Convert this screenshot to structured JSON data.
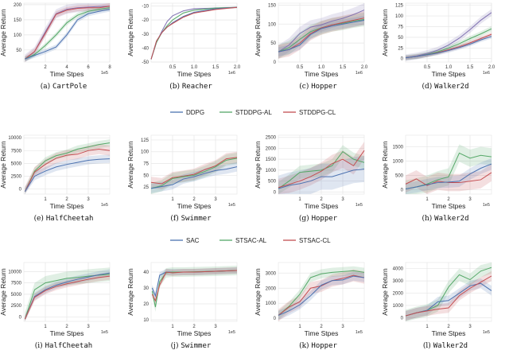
{
  "colors": {
    "blue": "#4c72b0",
    "green": "#55a868",
    "red": "#c44e52",
    "purple": "#8172b2"
  },
  "legends": [
    {
      "entries": [
        {
          "name": "DDPG",
          "color": "#4c72b0"
        },
        {
          "name": "STDDPG-AL",
          "color": "#55a868"
        },
        {
          "name": "STDDPG-CL",
          "color": "#c44e52"
        }
      ]
    },
    {
      "entries": [
        {
          "name": "SAC",
          "color": "#4c72b0"
        },
        {
          "name": "STSAC-AL",
          "color": "#55a868"
        },
        {
          "name": "STSAC-CL",
          "color": "#c44e52"
        }
      ]
    }
  ],
  "chart_data": [
    {
      "type": "line",
      "label": "(a)",
      "env": "CartPole",
      "xlabel": "Time Stpes",
      "ylabel": "Average Return",
      "x_multiplier": "1e5",
      "xlim": [
        0,
        8
      ],
      "ylim": [
        10,
        205
      ],
      "xticks": [
        2,
        4,
        6,
        8
      ],
      "yticks": [
        50,
        100,
        150,
        200
      ],
      "grid": true,
      "x": [
        0.1,
        1,
        2,
        3,
        4,
        5,
        6,
        7,
        8
      ],
      "series": [
        {
          "color": "#8172b2",
          "spread": 15,
          "values": [
            20,
            45,
            110,
            170,
            185,
            190,
            192,
            194,
            195
          ]
        },
        {
          "color": "#c44e52",
          "spread": 10,
          "values": [
            20,
            45,
            105,
            168,
            182,
            188,
            190,
            190,
            195
          ]
        },
        {
          "color": "#55a868",
          "spread": 8,
          "values": [
            20,
            35,
            65,
            100,
            140,
            165,
            178,
            185,
            190
          ]
        },
        {
          "color": "#4c72b0",
          "spread": 8,
          "values": [
            20,
            32,
            45,
            60,
            100,
            150,
            170,
            178,
            185
          ]
        }
      ]
    },
    {
      "type": "line",
      "label": "(b)",
      "env": "Reacher",
      "xlabel": "Time Stpes",
      "ylabel": "Average Return",
      "x_multiplier": "1e6",
      "xlim": [
        0,
        2
      ],
      "ylim": [
        -50,
        -8
      ],
      "xticks": [
        0.5,
        1.0,
        1.5,
        2.0
      ],
      "yticks": [
        -50,
        -40,
        -30,
        -20,
        -10
      ],
      "grid": true,
      "x": [
        0,
        0.125,
        0.25,
        0.375,
        0.5,
        0.75,
        1,
        1.5,
        2
      ],
      "series": [
        {
          "color": "#8172b2",
          "spread": 0.5,
          "values": [
            -48,
            -36,
            -28,
            -21,
            -17,
            -13.5,
            -12,
            -11.5,
            -11
          ]
        },
        {
          "color": "#55a868",
          "spread": 0.5,
          "values": [
            -48,
            -36,
            -29,
            -24,
            -20,
            -15,
            -13,
            -11.5,
            -11
          ]
        },
        {
          "color": "#4c72b0",
          "spread": 0.5,
          "values": [
            -48,
            -35,
            -29,
            -25,
            -22,
            -17.5,
            -14.5,
            -12,
            -11
          ]
        },
        {
          "color": "#c44e52",
          "spread": 0.5,
          "values": [
            -48,
            -35,
            -29,
            -25,
            -22.5,
            -18,
            -15,
            -12.5,
            -11
          ]
        }
      ]
    },
    {
      "type": "line",
      "label": "(c)",
      "env": "Hopper",
      "xlabel": "Time Stpes",
      "ylabel": "Average Return",
      "x_multiplier": "1e6",
      "xlim": [
        0,
        2
      ],
      "ylim": [
        0,
        155
      ],
      "xticks": [
        0.5,
        1.0,
        1.5,
        2.0
      ],
      "yticks": [
        0,
        50,
        100,
        150
      ],
      "grid": true,
      "x": [
        0,
        0.25,
        0.5,
        0.75,
        1,
        1.25,
        1.5,
        1.75,
        2
      ],
      "series": [
        {
          "color": "#8172b2",
          "spread": 18,
          "values": [
            27,
            45,
            75,
            92,
            98,
            108,
            115,
            125,
            137
          ]
        },
        {
          "color": "#55a868",
          "spread": 18,
          "values": [
            27,
            38,
            60,
            80,
            90,
            98,
            102,
            108,
            112
          ]
        },
        {
          "color": "#c44e52",
          "spread": 18,
          "values": [
            27,
            33,
            50,
            75,
            90,
            98,
            104,
            110,
            116
          ]
        },
        {
          "color": "#4c72b0",
          "spread": 12,
          "values": [
            27,
            33,
            45,
            72,
            88,
            95,
            100,
            105,
            110
          ]
        }
      ]
    },
    {
      "type": "line",
      "label": "(d)",
      "env": "Walker2d",
      "xlabel": "Time Stpes",
      "ylabel": "Average Return",
      "x_multiplier": "1e6",
      "xlim": [
        0,
        2
      ],
      "ylim": [
        -8,
        130
      ],
      "xticks": [
        0.5,
        1.0,
        1.5,
        2.0
      ],
      "yticks": [
        0,
        25,
        50,
        75,
        100,
        125
      ],
      "grid": true,
      "x": [
        0,
        0.25,
        0.5,
        0.75,
        1,
        1.25,
        1.5,
        1.75,
        2
      ],
      "series": [
        {
          "color": "#8172b2",
          "spread": 8,
          "values": [
            2,
            6,
            12,
            20,
            32,
            48,
            68,
            90,
            108
          ]
        },
        {
          "color": "#55a868",
          "spread": 6,
          "values": [
            2,
            5,
            10,
            16,
            25,
            35,
            47,
            58,
            70
          ]
        },
        {
          "color": "#c44e52",
          "spread": 5,
          "values": [
            2,
            5,
            9,
            14,
            21,
            28,
            37,
            47,
            57
          ]
        },
        {
          "color": "#4c72b0",
          "spread": 5,
          "values": [
            2,
            5,
            9,
            13,
            19,
            26,
            34,
            44,
            52
          ]
        }
      ]
    },
    {
      "type": "line",
      "label": "(e)",
      "env": "HalfCheetah",
      "xlabel": "Time Stpes",
      "ylabel": "Average Return",
      "x_multiplier": "1e5",
      "xlim": [
        0,
        4
      ],
      "ylim": [
        -1000,
        10500
      ],
      "xticks": [
        1,
        2,
        3
      ],
      "yticks": [
        0,
        2500,
        5000,
        7500,
        10000
      ],
      "grid": true,
      "x": [
        0.05,
        0.5,
        1,
        1.5,
        2,
        2.5,
        3,
        3.5,
        4
      ],
      "series": [
        {
          "color": "#55a868",
          "spread": 700,
          "values": [
            -500,
            3500,
            5500,
            6500,
            7000,
            7800,
            8200,
            8700,
            9000
          ]
        },
        {
          "color": "#c44e52",
          "spread": 1000,
          "values": [
            -500,
            3300,
            4800,
            6000,
            6600,
            6800,
            7500,
            7800,
            7500
          ]
        },
        {
          "color": "#4c72b0",
          "spread": 800,
          "values": [
            -500,
            2500,
            3500,
            4300,
            4800,
            5200,
            5600,
            5800,
            5900
          ]
        }
      ]
    },
    {
      "type": "line",
      "label": "(f)",
      "env": "Swimmer",
      "xlabel": "Time Stpes",
      "ylabel": "Average Return",
      "x_multiplier": "1e5",
      "xlim": [
        0,
        4
      ],
      "ylim": [
        10,
        135
      ],
      "xticks": [
        1,
        2,
        3
      ],
      "yticks": [
        25,
        50,
        75,
        100,
        125
      ],
      "grid": true,
      "x": [
        0,
        0.5,
        1,
        1.5,
        2,
        2.5,
        3,
        3.5,
        4
      ],
      "series": [
        {
          "color": "#c44e52",
          "spread": 12,
          "values": [
            35,
            32,
            45,
            48,
            52,
            62,
            70,
            85,
            88
          ]
        },
        {
          "color": "#55a868",
          "spread": 12,
          "values": [
            22,
            28,
            43,
            47,
            50,
            58,
            68,
            82,
            86
          ]
        },
        {
          "color": "#4c72b0",
          "spread": 10,
          "values": [
            22,
            26,
            30,
            42,
            47,
            54,
            60,
            63,
            68
          ]
        }
      ]
    },
    {
      "type": "line",
      "label": "(g)",
      "env": "Hopper",
      "xlabel": "Time Stpes",
      "ylabel": "Average Return",
      "x_multiplier": "1e5",
      "xlim": [
        0,
        4
      ],
      "ylim": [
        -100,
        2600
      ],
      "xticks": [
        1,
        2,
        3
      ],
      "yticks": [
        0,
        500,
        1000,
        1500,
        2000,
        2500
      ],
      "grid": true,
      "x": [
        0,
        0.5,
        1,
        1.5,
        2,
        2.5,
        3,
        3.5,
        4
      ],
      "series": [
        {
          "color": "#55a868",
          "spread": 300,
          "values": [
            150,
            500,
            900,
            950,
            1000,
            1200,
            1850,
            1500,
            1350
          ]
        },
        {
          "color": "#c44e52",
          "spread": 400,
          "values": [
            200,
            350,
            500,
            700,
            950,
            1300,
            1500,
            1200,
            1900
          ]
        },
        {
          "color": "#4c72b0",
          "spread": 600,
          "values": [
            150,
            300,
            380,
            500,
            700,
            700,
            850,
            1000,
            1050
          ]
        }
      ]
    },
    {
      "type": "line",
      "label": "(h)",
      "env": "Walker2d",
      "xlabel": "Time Stpes",
      "ylabel": "Average Return",
      "x_multiplier": "1e5",
      "xlim": [
        0,
        4
      ],
      "ylim": [
        -150,
        1900
      ],
      "xticks": [
        1,
        2,
        3
      ],
      "yticks": [
        0,
        500,
        1000,
        1500
      ],
      "grid": true,
      "x": [
        0,
        0.5,
        1,
        1.5,
        2,
        2.5,
        3,
        3.5,
        4
      ],
      "series": [
        {
          "color": "#55a868",
          "spread": 300,
          "values": [
            30,
            100,
            200,
            350,
            450,
            1280,
            1100,
            1200,
            1150
          ]
        },
        {
          "color": "#c44e52",
          "spread": 300,
          "values": [
            200,
            380,
            150,
            300,
            250,
            250,
            300,
            350,
            600
          ]
        },
        {
          "color": "#4c72b0",
          "spread": 200,
          "values": [
            30,
            100,
            180,
            250,
            270,
            300,
            550,
            750,
            900
          ]
        }
      ]
    },
    {
      "type": "line",
      "label": "(i)",
      "env": "HalfCheetah",
      "xlabel": "Time Stpes",
      "ylabel": "Average Return",
      "x_multiplier": "1e5",
      "xlim": [
        0,
        4
      ],
      "ylim": [
        -1000,
        12000
      ],
      "xticks": [
        1,
        2,
        3
      ],
      "yticks": [
        0,
        2500,
        5000,
        7500,
        10000
      ],
      "grid": true,
      "x": [
        0.05,
        0.5,
        1,
        1.5,
        2,
        2.5,
        3,
        3.5,
        4
      ],
      "series": [
        {
          "color": "#55a868",
          "spread": 1500,
          "values": [
            -500,
            6000,
            7500,
            8000,
            8500,
            8700,
            9000,
            9200,
            9400
          ]
        },
        {
          "color": "#4c72b0",
          "spread": 800,
          "values": [
            -500,
            4500,
            6000,
            7000,
            7700,
            8300,
            8800,
            9300,
            9700
          ]
        },
        {
          "color": "#c44e52",
          "spread": 800,
          "values": [
            -500,
            4300,
            5800,
            6700,
            7300,
            7800,
            8300,
            8700,
            9000
          ]
        }
      ]
    },
    {
      "type": "line",
      "label": "(j)",
      "env": "Swimmer",
      "xlabel": "Time Stpes",
      "ylabel": "Average Return",
      "x_multiplier": "1e5",
      "xlim": [
        0,
        4
      ],
      "ylim": [
        9,
        46
      ],
      "xticks": [
        1,
        2,
        3
      ],
      "yticks": [
        10,
        20,
        30,
        40
      ],
      "grid": true,
      "x": [
        0.05,
        0.2,
        0.4,
        0.7,
        1,
        1.5,
        2,
        3,
        4
      ],
      "series": [
        {
          "color": "#4c72b0",
          "spread": 2,
          "values": [
            30,
            25,
            38,
            40,
            40,
            40,
            40,
            40.5,
            41
          ]
        },
        {
          "color": "#55a868",
          "spread": 3,
          "values": [
            28,
            18,
            34,
            39.5,
            40,
            40,
            40.2,
            40.5,
            41
          ]
        },
        {
          "color": "#c44e52",
          "spread": 2,
          "values": [
            26,
            22,
            32,
            40,
            39.5,
            40,
            40,
            40.5,
            41
          ]
        }
      ]
    },
    {
      "type": "line",
      "label": "(k)",
      "env": "Hopper",
      "xlabel": "Time Stpes",
      "ylabel": "Average Return",
      "x_multiplier": "1e5",
      "xlim": [
        0,
        4
      ],
      "ylim": [
        -200,
        3700
      ],
      "xticks": [
        1,
        2,
        3
      ],
      "yticks": [
        0,
        1000,
        2000,
        3000
      ],
      "grid": true,
      "x": [
        0,
        0.5,
        1,
        1.5,
        2,
        2.5,
        3,
        3.5,
        4
      ],
      "series": [
        {
          "color": "#55a868",
          "spread": 300,
          "values": [
            200,
            800,
            1600,
            2700,
            2950,
            3050,
            3100,
            3150,
            3050
          ]
        },
        {
          "color": "#c44e52",
          "spread": 400,
          "values": [
            200,
            750,
            1100,
            2000,
            2150,
            2500,
            2650,
            2850,
            2700
          ]
        },
        {
          "color": "#4c72b0",
          "spread": 300,
          "values": [
            200,
            500,
            900,
            1500,
            2200,
            2500,
            2550,
            2800,
            2700
          ]
        }
      ]
    },
    {
      "type": "line",
      "label": "(l)",
      "env": "Walker2d",
      "xlabel": "Time Stpes",
      "ylabel": "Average Return",
      "x_multiplier": "1e5",
      "xlim": [
        0,
        4
      ],
      "ylim": [
        -300,
        4500
      ],
      "xticks": [
        1,
        2,
        3
      ],
      "yticks": [
        0,
        1000,
        2000,
        3000,
        4000
      ],
      "grid": true,
      "x": [
        0,
        0.5,
        1,
        1.5,
        2,
        2.5,
        3,
        3.5,
        4
      ],
      "series": [
        {
          "color": "#55a868",
          "spread": 500,
          "values": [
            150,
            400,
            600,
            1000,
            2500,
            3500,
            3100,
            3800,
            4100
          ]
        },
        {
          "color": "#4c72b0",
          "spread": 400,
          "values": [
            150,
            400,
            600,
            1300,
            1400,
            2000,
            2600,
            2800,
            2200
          ]
        },
        {
          "color": "#c44e52",
          "spread": 400,
          "values": [
            150,
            400,
            550,
            700,
            800,
            1800,
            2400,
            2900,
            3400
          ]
        }
      ]
    }
  ]
}
